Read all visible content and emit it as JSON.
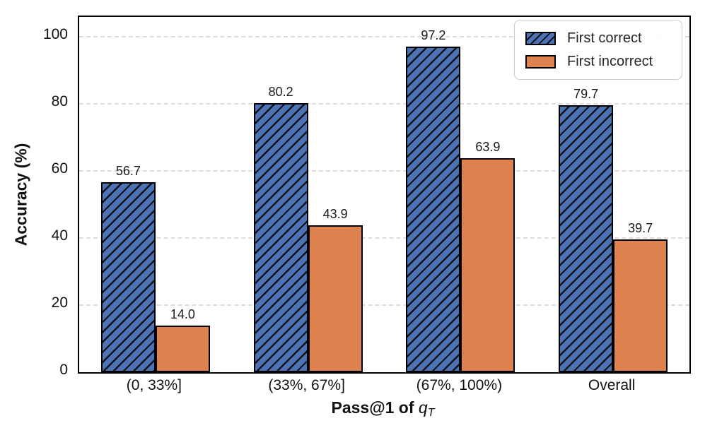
{
  "chart_data": {
    "type": "bar",
    "title": "",
    "categories": [
      "(0, 33%]",
      "(33%, 67%]",
      "(67%, 100%)",
      "Overall"
    ],
    "series": [
      {
        "name": "First correct",
        "values": [
          56.7,
          80.2,
          97.2,
          79.7
        ],
        "value_labels": [
          "56.7",
          "80.2",
          "97.2",
          "79.7"
        ],
        "color": "#4C74B4",
        "hatch": "//",
        "hatch_color": "#10101a",
        "edge_color": "#000000"
      },
      {
        "name": "First incorrect",
        "values": [
          14.0,
          43.9,
          63.9,
          39.7
        ],
        "value_labels": [
          "14.0",
          "43.9",
          "63.9",
          "39.7"
        ],
        "color": "#DE8250",
        "hatch": "",
        "hatch_color": "",
        "edge_color": "#000000"
      }
    ],
    "xlabel": {
      "prefix": "Pass@1 of ",
      "var": "q",
      "subscript": "T"
    },
    "ylabel": "Accuracy (%)",
    "ylim": [
      0,
      106
    ],
    "yticks": [
      0,
      20,
      40,
      60,
      80,
      100
    ],
    "grid": {
      "axis": "y",
      "style": "dashed",
      "color": "#dcdcdc"
    },
    "legend": {
      "position": "upper right"
    },
    "spine_color": "#000000",
    "background_color": "#ffffff"
  }
}
